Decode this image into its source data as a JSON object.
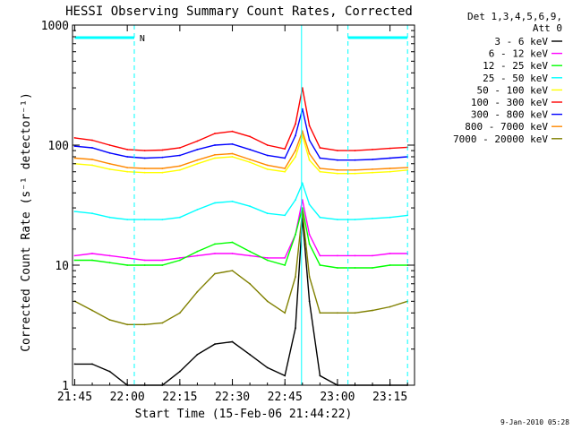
{
  "chart_data": {
    "type": "line",
    "title": "HESSI Observing Summary Count Rates, Corrected",
    "xlabel": "Start Time (15-Feb-06 21:44:22)",
    "ylabel": "Corrected Count Rate (s⁻¹ detector⁻¹)",
    "yscale": "log",
    "ylim": [
      1,
      1000
    ],
    "xlim": [
      "21:44",
      "23:22"
    ],
    "x_ticks": [
      "21:45",
      "22:00",
      "22:15",
      "22:30",
      "22:45",
      "23:00",
      "23:15"
    ],
    "y_ticks": [
      "1",
      "10",
      "100",
      "1000"
    ],
    "legend_header": [
      "Det 1,3,4,5,6,9,",
      "Att 0"
    ],
    "legend_position": "right",
    "night_marker": "N",
    "x": [
      "21:45",
      "21:50",
      "21:55",
      "22:00",
      "22:05",
      "22:10",
      "22:15",
      "22:20",
      "22:25",
      "22:30",
      "22:35",
      "22:40",
      "22:45",
      "22:48",
      "22:50",
      "22:52",
      "22:55",
      "23:00",
      "23:05",
      "23:10",
      "23:15",
      "23:20"
    ],
    "series": [
      {
        "name": "3 - 6 keV",
        "color": "#000000",
        "values": [
          1.5,
          1.5,
          1.3,
          1,
          1,
          1,
          1.3,
          1.8,
          2.2,
          2.3,
          1.8,
          1.4,
          1.2,
          3,
          25,
          5,
          1.2,
          1,
          1,
          1,
          1,
          1
        ]
      },
      {
        "name": "6 - 12 keV",
        "color": "#ff00ff",
        "values": [
          12,
          12.5,
          12,
          11.5,
          11,
          11,
          11.5,
          12,
          12.5,
          12.5,
          12,
          11.5,
          11.5,
          18,
          35,
          18,
          12,
          12,
          12,
          12,
          12.5,
          12.5
        ]
      },
      {
        "name": "12 - 25 keV",
        "color": "#00ff00",
        "values": [
          11,
          11,
          10.5,
          10,
          10,
          10,
          11,
          13,
          15,
          15.5,
          13,
          11,
          10,
          18,
          30,
          15,
          10,
          9.5,
          9.5,
          9.5,
          10,
          10
        ]
      },
      {
        "name": "25 - 50 keV",
        "color": "#00ffff",
        "values": [
          28,
          27,
          25,
          24,
          24,
          24,
          25,
          29,
          33,
          34,
          31,
          27,
          26,
          35,
          48,
          32,
          25,
          24,
          24,
          24.5,
          25,
          26
        ]
      },
      {
        "name": "50 - 100 keV",
        "color": "#ffff00",
        "values": [
          70,
          68,
          63,
          60,
          59,
          59,
          62,
          70,
          78,
          80,
          72,
          63,
          60,
          80,
          120,
          75,
          60,
          58,
          58,
          59,
          60,
          62
        ]
      },
      {
        "name": "100 - 300 keV",
        "color": "#ff0000",
        "values": [
          115,
          110,
          100,
          92,
          90,
          91,
          95,
          108,
          125,
          130,
          118,
          100,
          93,
          150,
          300,
          145,
          95,
          90,
          90,
          92,
          94,
          96
        ]
      },
      {
        "name": "300 - 800 keV",
        "color": "#0000ff",
        "values": [
          98,
          95,
          86,
          80,
          78,
          79,
          82,
          92,
          100,
          102,
          92,
          82,
          78,
          120,
          200,
          110,
          78,
          75,
          75,
          76,
          78,
          80
        ]
      },
      {
        "name": "800 - 7000 keV",
        "color": "#ff8800",
        "values": [
          78,
          76,
          70,
          65,
          64,
          64,
          67,
          75,
          83,
          85,
          76,
          68,
          64,
          90,
          130,
          85,
          64,
          62,
          62,
          63,
          64,
          65
        ]
      },
      {
        "name": "7000 - 20000 keV",
        "color": "#808000",
        "values": [
          5,
          4.2,
          3.5,
          3.2,
          3.2,
          3.3,
          4,
          6,
          8.5,
          9,
          7,
          5,
          4,
          8,
          28,
          8,
          4,
          4,
          4,
          4.2,
          4.5,
          5
        ]
      }
    ],
    "overlays": [
      {
        "kind": "night-bar",
        "from": "21:45",
        "to": "22:02"
      },
      {
        "kind": "night-bar",
        "from": "23:03",
        "to": "23:20"
      },
      {
        "kind": "night-boundary",
        "at": "22:02"
      },
      {
        "kind": "night-boundary",
        "at": "23:03"
      },
      {
        "kind": "night-boundary",
        "at": "23:20"
      }
    ],
    "footer_date": "9-Jan-2010 05:28"
  }
}
